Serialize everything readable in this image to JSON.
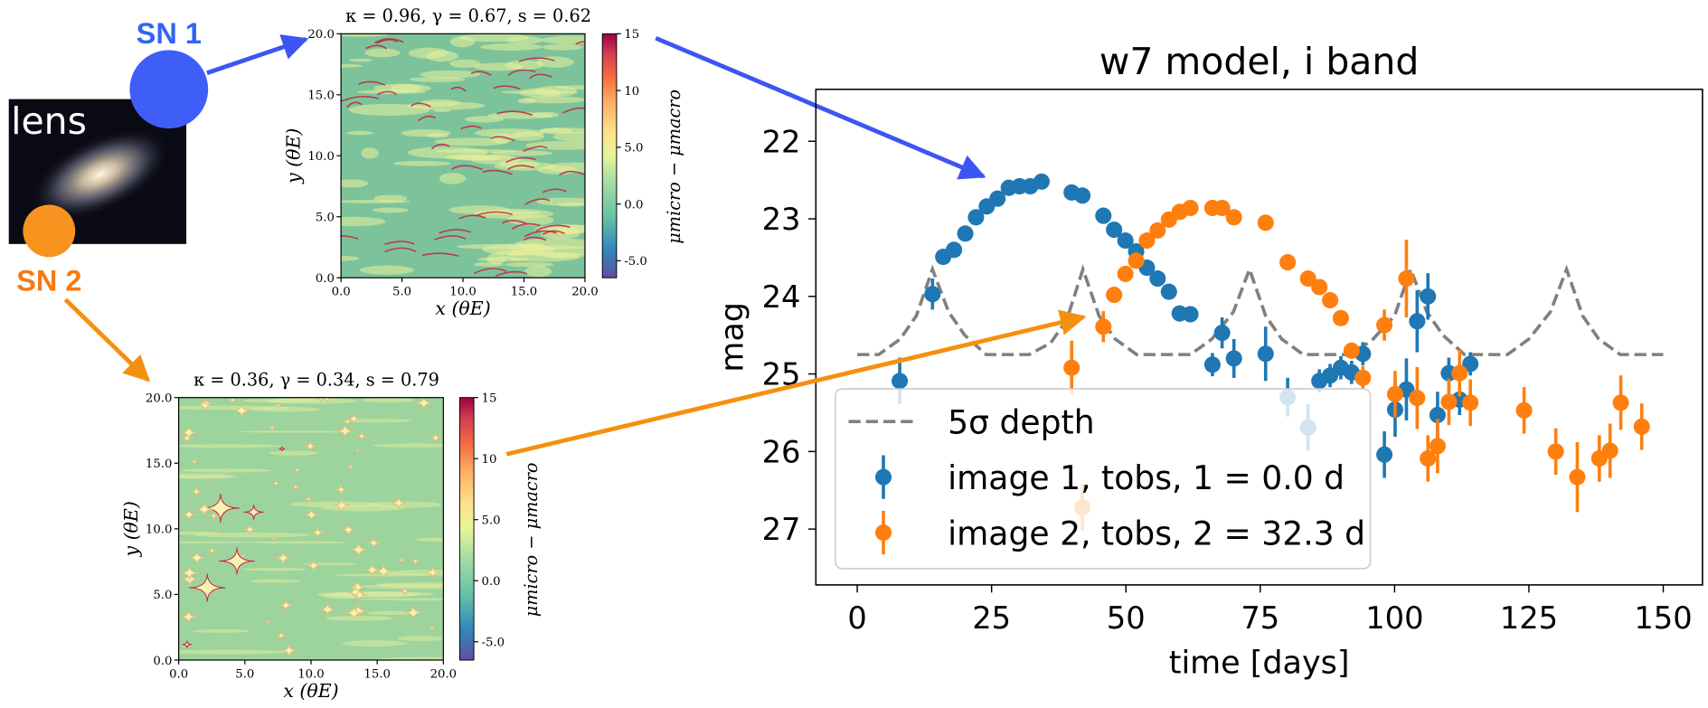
{
  "chart_data": [
    {
      "type": "scatter",
      "title": "w7 model, i band",
      "xlabel": "time [days]",
      "ylabel": "mag",
      "xlim": [
        -7.7,
        157.3
      ],
      "ylim": [
        21.33,
        27.72
      ],
      "y_inverted": true,
      "xticks": [
        0,
        25,
        50,
        75,
        100,
        125,
        150
      ],
      "yticks": [
        22,
        23,
        24,
        25,
        26,
        27
      ],
      "legend": "lower left",
      "series": [
        {
          "name": "5σ depth",
          "type": "line",
          "dashed": true,
          "color": "#808080",
          "x": [
            0,
            4,
            8,
            11,
            14,
            17,
            20,
            24,
            32,
            36,
            39,
            42,
            45,
            48,
            52,
            62,
            66,
            70,
            73,
            76,
            79,
            83,
            92,
            96,
            100,
            103,
            106,
            109,
            113,
            121,
            125,
            129,
            132,
            135,
            138,
            142,
            150
          ],
          "values": [
            24.75,
            24.75,
            24.55,
            24.25,
            23.65,
            24.2,
            24.5,
            24.75,
            24.75,
            24.6,
            24.3,
            23.65,
            24.25,
            24.55,
            24.75,
            24.75,
            24.55,
            24.2,
            23.65,
            24.25,
            24.55,
            24.75,
            24.75,
            24.55,
            24.25,
            23.65,
            24.2,
            24.5,
            24.75,
            24.75,
            24.55,
            24.2,
            23.65,
            24.25,
            24.55,
            24.75,
            24.75
          ]
        },
        {
          "name": "image 1, tobs, 1 = 0.0 d",
          "type": "errorbar",
          "color": "#1f77b4",
          "x": [
            7.9,
            14.0,
            16.0,
            18.0,
            20.1,
            22.1,
            24.1,
            26.1,
            28.2,
            30.2,
            32.2,
            34.3,
            39.9,
            41.9,
            45.8,
            47.8,
            49.9,
            51.9,
            53.9,
            55.9,
            58.0,
            60.0,
            62.0,
            66.1,
            67.9,
            70.1,
            76.0,
            80.1,
            83.9,
            86.0,
            88.0,
            90.0,
            92.0,
            94.1,
            98.1,
            100.1,
            102.2,
            104.2,
            106.2,
            108.0,
            110.1,
            112.1,
            114.1
          ],
          "values": [
            25.09,
            23.97,
            23.49,
            23.4,
            23.19,
            22.98,
            22.84,
            22.74,
            22.6,
            22.58,
            22.58,
            22.52,
            22.66,
            22.7,
            22.96,
            23.14,
            23.28,
            23.42,
            23.63,
            23.77,
            23.94,
            24.22,
            24.23,
            24.88,
            24.47,
            24.8,
            24.74,
            25.3,
            25.69,
            25.09,
            25.02,
            24.92,
            24.98,
            24.74,
            26.04,
            25.46,
            25.2,
            24.32,
            24.0,
            25.53,
            24.99,
            25.33,
            24.87
          ],
          "errors": [
            0.3,
            0.2,
            0.08,
            0.06,
            0.05,
            0.05,
            0.05,
            0.05,
            0.05,
            0.05,
            0.05,
            0.05,
            0.05,
            0.05,
            0.05,
            0.05,
            0.05,
            0.05,
            0.05,
            0.05,
            0.05,
            0.06,
            0.06,
            0.15,
            0.2,
            0.25,
            0.35,
            0.25,
            0.3,
            0.15,
            0.15,
            0.15,
            0.15,
            0.15,
            0.3,
            0.35,
            0.4,
            0.4,
            0.3,
            0.3,
            0.2,
            0.2,
            0.15
          ]
        },
        {
          "name": "image 2, tobs, 2 = 32.3 d",
          "type": "errorbar",
          "color": "#ff7f0e",
          "x": [
            39.9,
            41.9,
            45.8,
            47.8,
            49.9,
            51.9,
            53.9,
            55.9,
            58.0,
            60.0,
            62.0,
            66.1,
            67.9,
            70.1,
            76.0,
            80.1,
            83.9,
            86.0,
            88.0,
            90.0,
            92.0,
            94.1,
            98.1,
            100.1,
            102.2,
            104.2,
            106.2,
            108.0,
            110.1,
            112.1,
            114.1,
            124.1,
            130.0,
            134.0,
            138.1,
            140.1,
            142.1,
            146.0
          ],
          "values": [
            24.92,
            26.72,
            24.39,
            23.98,
            23.71,
            23.54,
            23.28,
            23.15,
            23.01,
            22.91,
            22.86,
            22.86,
            22.86,
            22.98,
            23.05,
            23.56,
            23.77,
            23.88,
            24.05,
            24.28,
            24.7,
            25.05,
            24.37,
            25.26,
            23.77,
            25.31,
            26.09,
            25.93,
            25.36,
            24.99,
            25.37,
            25.47,
            26.0,
            26.33,
            26.09,
            25.99,
            25.37,
            25.68
          ],
          "errors": [
            0.35,
            0.3,
            0.2,
            0.1,
            0.08,
            0.06,
            0.05,
            0.05,
            0.05,
            0.05,
            0.05,
            0.05,
            0.05,
            0.05,
            0.05,
            0.06,
            0.06,
            0.07,
            0.08,
            0.08,
            0.1,
            0.15,
            0.2,
            0.3,
            0.5,
            0.4,
            0.3,
            0.35,
            0.3,
            0.3,
            0.3,
            0.3,
            0.3,
            0.45,
            0.3,
            0.35,
            0.35,
            0.3
          ]
        }
      ]
    },
    {
      "type": "heatmap",
      "title": "κ = 0.96,  γ = 0.67,  s = 0.62",
      "xlabel": "x (θE)",
      "ylabel": "y (θE)",
      "xlim": [
        0,
        20
      ],
      "ylim": [
        0,
        20
      ],
      "xticks": [
        {
          "value": 0,
          "label": "0.0"
        },
        {
          "value": 5,
          "label": "5.0"
        },
        {
          "value": 10,
          "label": "10.0"
        },
        {
          "value": 15,
          "label": "15.0"
        },
        {
          "value": 20,
          "label": "20.0"
        }
      ],
      "yticks": [
        {
          "value": 0,
          "label": "0.0"
        },
        {
          "value": 5,
          "label": "5.0"
        },
        {
          "value": 10,
          "label": "10.0"
        },
        {
          "value": 15,
          "label": "15.0"
        },
        {
          "value": 20,
          "label": "20.0"
        }
      ],
      "colorbar": {
        "label": "μmicro − μmacro",
        "lim": [
          -6.5,
          15
        ],
        "ticks": [
          15,
          10,
          {
            "value": 5,
            "label": "5.0"
          },
          {
            "value": 0,
            "label": "0.0"
          },
          {
            "value": -5,
            "label": "-5.0"
          }
        ]
      }
    },
    {
      "type": "heatmap",
      "title": "κ = 0.36,  γ = 0.34,  s = 0.79",
      "xlabel": "x (θE)",
      "ylabel": "y (θE)",
      "xlim": [
        0,
        20
      ],
      "ylim": [
        0,
        20
      ],
      "xticks": [
        {
          "value": 0,
          "label": "0.0"
        },
        {
          "value": 5,
          "label": "5.0"
        },
        {
          "value": 10,
          "label": "10.0"
        },
        {
          "value": 15,
          "label": "15.0"
        },
        {
          "value": 20,
          "label": "20.0"
        }
      ],
      "yticks": [
        {
          "value": 0,
          "label": "0.0"
        },
        {
          "value": 5,
          "label": "5.0"
        },
        {
          "value": 10,
          "label": "10.0"
        },
        {
          "value": 15,
          "label": "15.0"
        },
        {
          "value": 20,
          "label": "20.0"
        }
      ],
      "colorbar": {
        "label": "μmicro − μmacro",
        "lim": [
          -6.5,
          15
        ],
        "ticks": [
          15,
          10,
          {
            "value": 5,
            "label": "5.0"
          },
          {
            "value": 0,
            "label": "0.0"
          },
          {
            "value": -5,
            "label": "-5.0"
          }
        ]
      }
    }
  ],
  "diagram": {
    "lens": "lens",
    "sn1": "SN 1",
    "sn2": "SN 2"
  }
}
